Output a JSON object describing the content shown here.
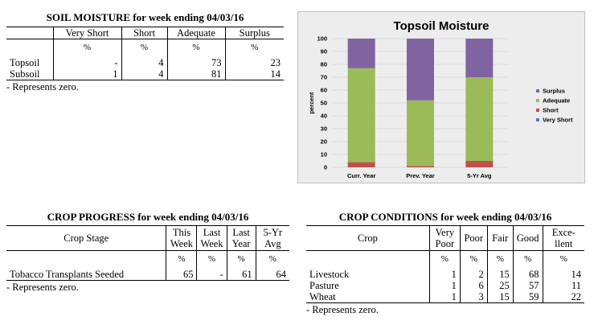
{
  "soil": {
    "title": "SOIL MOISTURE for week ending 04/03/16",
    "headers": [
      "Very Short",
      "Short",
      "Adequate",
      "Surplus"
    ],
    "units": [
      "%",
      "%",
      "%",
      "%"
    ],
    "rows": [
      {
        "label": "Topsoil",
        "values": [
          "-",
          "4",
          "73",
          "23"
        ]
      },
      {
        "label": "Subsoil",
        "values": [
          "1",
          "4",
          "81",
          "14"
        ]
      }
    ],
    "note": "- Represents zero."
  },
  "progress": {
    "title": "CROP PROGRESS for week ending 04/03/16",
    "stage_header": "Crop Stage",
    "headers": [
      [
        "This",
        "Week"
      ],
      [
        "Last",
        "Week"
      ],
      [
        "Last",
        "Year"
      ],
      [
        "5-Yr",
        "Avg"
      ]
    ],
    "units": [
      "%",
      "%",
      "%",
      "%"
    ],
    "rows": [
      {
        "label": "Tobacco Transplants Seeded",
        "values": [
          "65",
          "-",
          "61",
          "64"
        ]
      }
    ],
    "note": "- Represents zero."
  },
  "conditions": {
    "title": "CROP CONDITIONS for week ending 04/03/16",
    "crop_header": "Crop",
    "headers": [
      [
        "Very",
        "Poor"
      ],
      [
        "Poor"
      ],
      [
        "Fair"
      ],
      [
        "Good"
      ],
      [
        "Exce-",
        "llent"
      ]
    ],
    "units": [
      "%",
      "%",
      "%",
      "%",
      "%"
    ],
    "rows": [
      {
        "label": "Livestock",
        "values": [
          "1",
          "2",
          "15",
          "68",
          "14"
        ]
      },
      {
        "label": "Pasture",
        "values": [
          "1",
          "6",
          "25",
          "57",
          "11"
        ]
      },
      {
        "label": "Wheat",
        "values": [
          "1",
          "3",
          "15",
          "59",
          "22"
        ]
      }
    ],
    "note": "- Represents zero."
  },
  "chart_data": {
    "type": "bar",
    "stacked": true,
    "title": "Topsoil Moisture",
    "xlabel": "",
    "ylabel": "percent",
    "ylim": [
      0,
      100
    ],
    "yticks": [
      0,
      10,
      20,
      30,
      40,
      50,
      60,
      70,
      80,
      90,
      100
    ],
    "categories": [
      "Curr. Year",
      "Prev. Year",
      "5-Yr Avg"
    ],
    "series": [
      {
        "name": "Very Short",
        "color": "#4a7ebb",
        "values": [
          0,
          0,
          0
        ]
      },
      {
        "name": "Short",
        "color": "#c0504d",
        "values": [
          4,
          1,
          5
        ]
      },
      {
        "name": "Adequate",
        "color": "#9bbb59",
        "values": [
          73,
          51,
          65
        ]
      },
      {
        "name": "Surplus",
        "color": "#8064a2",
        "values": [
          23,
          48,
          30
        ]
      }
    ],
    "legend": {
      "position": "right",
      "order": [
        "Surplus",
        "Adequate",
        "Short",
        "Very Short"
      ]
    },
    "grid": true
  }
}
